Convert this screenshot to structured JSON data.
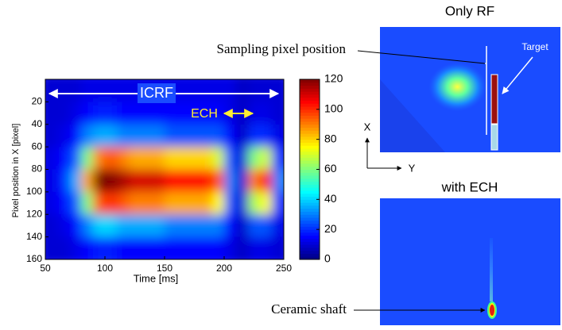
{
  "chart_data": {
    "type": "heatmap",
    "colormap": "jet",
    "x_label": "Time [ms]",
    "y_label": "Pixel position in X [pixel]",
    "xlim": [
      50,
      250
    ],
    "ylim": [
      0,
      160
    ],
    "y_inverted": true,
    "xticks": [
      50,
      100,
      150,
      200,
      250
    ],
    "yticks": [
      20,
      40,
      60,
      80,
      100,
      120,
      140,
      160
    ],
    "x_bins": [
      50,
      60,
      70,
      80,
      90,
      100,
      110,
      120,
      130,
      140,
      150,
      160,
      170,
      180,
      190,
      200,
      210,
      220,
      230,
      240,
      250
    ],
    "y_bins": [
      0,
      20,
      40,
      60,
      80,
      100,
      120,
      140,
      160
    ],
    "values": [
      [
        10,
        10,
        10,
        12,
        12,
        12,
        12,
        12,
        12,
        12,
        12,
        12,
        12,
        12,
        12,
        12,
        8,
        10,
        10,
        10
      ],
      [
        10,
        10,
        12,
        15,
        18,
        18,
        15,
        15,
        15,
        15,
        15,
        15,
        15,
        15,
        15,
        12,
        8,
        12,
        12,
        10
      ],
      [
        10,
        12,
        15,
        30,
        35,
        35,
        30,
        30,
        30,
        30,
        25,
        25,
        25,
        25,
        25,
        15,
        8,
        20,
        20,
        12
      ],
      [
        12,
        15,
        25,
        60,
        90,
        95,
        90,
        85,
        85,
        85,
        80,
        80,
        80,
        80,
        70,
        25,
        10,
        60,
        70,
        20
      ],
      [
        12,
        18,
        35,
        85,
        120,
        120,
        115,
        110,
        110,
        110,
        105,
        105,
        105,
        105,
        95,
        30,
        10,
        90,
        105,
        30
      ],
      [
        12,
        15,
        25,
        60,
        95,
        100,
        95,
        90,
        90,
        90,
        85,
        85,
        85,
        85,
        75,
        25,
        10,
        65,
        75,
        20
      ],
      [
        10,
        12,
        15,
        30,
        40,
        40,
        35,
        35,
        35,
        35,
        30,
        30,
        30,
        30,
        30,
        15,
        8,
        25,
        25,
        12
      ],
      [
        10,
        10,
        12,
        15,
        18,
        18,
        15,
        15,
        15,
        15,
        15,
        15,
        15,
        15,
        15,
        12,
        8,
        12,
        12,
        10
      ]
    ],
    "colorbar": {
      "clim": [
        0,
        120
      ],
      "ticks": [
        0,
        20,
        40,
        60,
        80,
        100,
        120
      ]
    },
    "annotations": [
      "ICRF",
      "ECH"
    ]
  },
  "panels": {
    "only_rf": {
      "title": "Only RF",
      "target": "Target",
      "sampling": "Sampling pixel position"
    },
    "with_ech": {
      "title": "with ECH",
      "shaft": "Ceramic shaft"
    },
    "axes": {
      "x": "X",
      "y": "Y"
    }
  }
}
